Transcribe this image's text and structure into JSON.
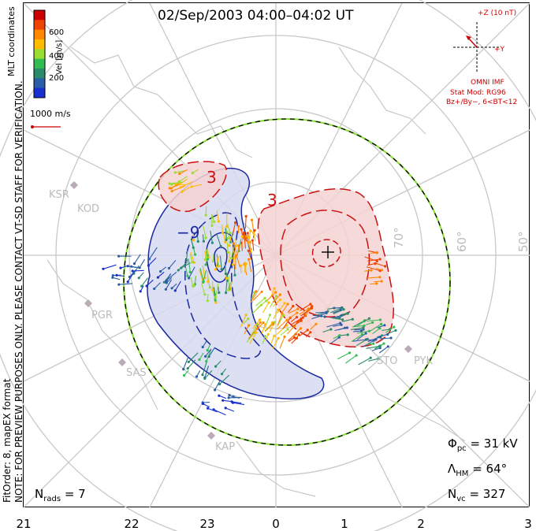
{
  "title": "02/Sep/2003 04:00–04:02 UT",
  "colorbar": {
    "title": "MLT coordinates",
    "unit_label": "Vel [m/s]",
    "ticks": [
      "600",
      "400",
      "200"
    ],
    "colors": [
      "#cc0000",
      "#ee4400",
      "#ff8800",
      "#ffbb00",
      "#99dd33",
      "#33bb55",
      "#2a8a6a",
      "#2a5fa8",
      "#1a2fd0"
    ]
  },
  "scale_vector": "1000 m/s",
  "note_line1": "NOTE: FOR PREVIEW PURPOSES ONLY. PLEASE CONTACT VT-SD STAFF FOR VERIFICATION.",
  "note_line2": "FitOrder: 8, mapEX format",
  "imf": {
    "z_label": "+Z (10 nT)",
    "y_label": "+Y",
    "source": "OMNI IMF",
    "stat_mod": "Stat Mod: RG96",
    "condition": "Bz+/By−, 6<BT<12"
  },
  "stats": {
    "phi_pc": "= 31 kV",
    "lambda_hm": "= 64°",
    "n_vc": "= 327",
    "n_rads": "= 7"
  },
  "latitude_labels": [
    "70°",
    "60°",
    "50°"
  ],
  "mlt_labels": [
    "21",
    "22",
    "23",
    "0",
    "1",
    "2",
    "3"
  ],
  "stations": [
    "KSR",
    "KOD",
    "PGR",
    "SAS",
    "KAP",
    "STO",
    "PYK"
  ],
  "contour_labels": [
    "3",
    "3",
    "−9"
  ],
  "colors": {
    "positive": "#cc1111",
    "negative": "#1a2aa0",
    "grid": "#c8c8c8",
    "boundary_green": "#88dd33"
  }
}
